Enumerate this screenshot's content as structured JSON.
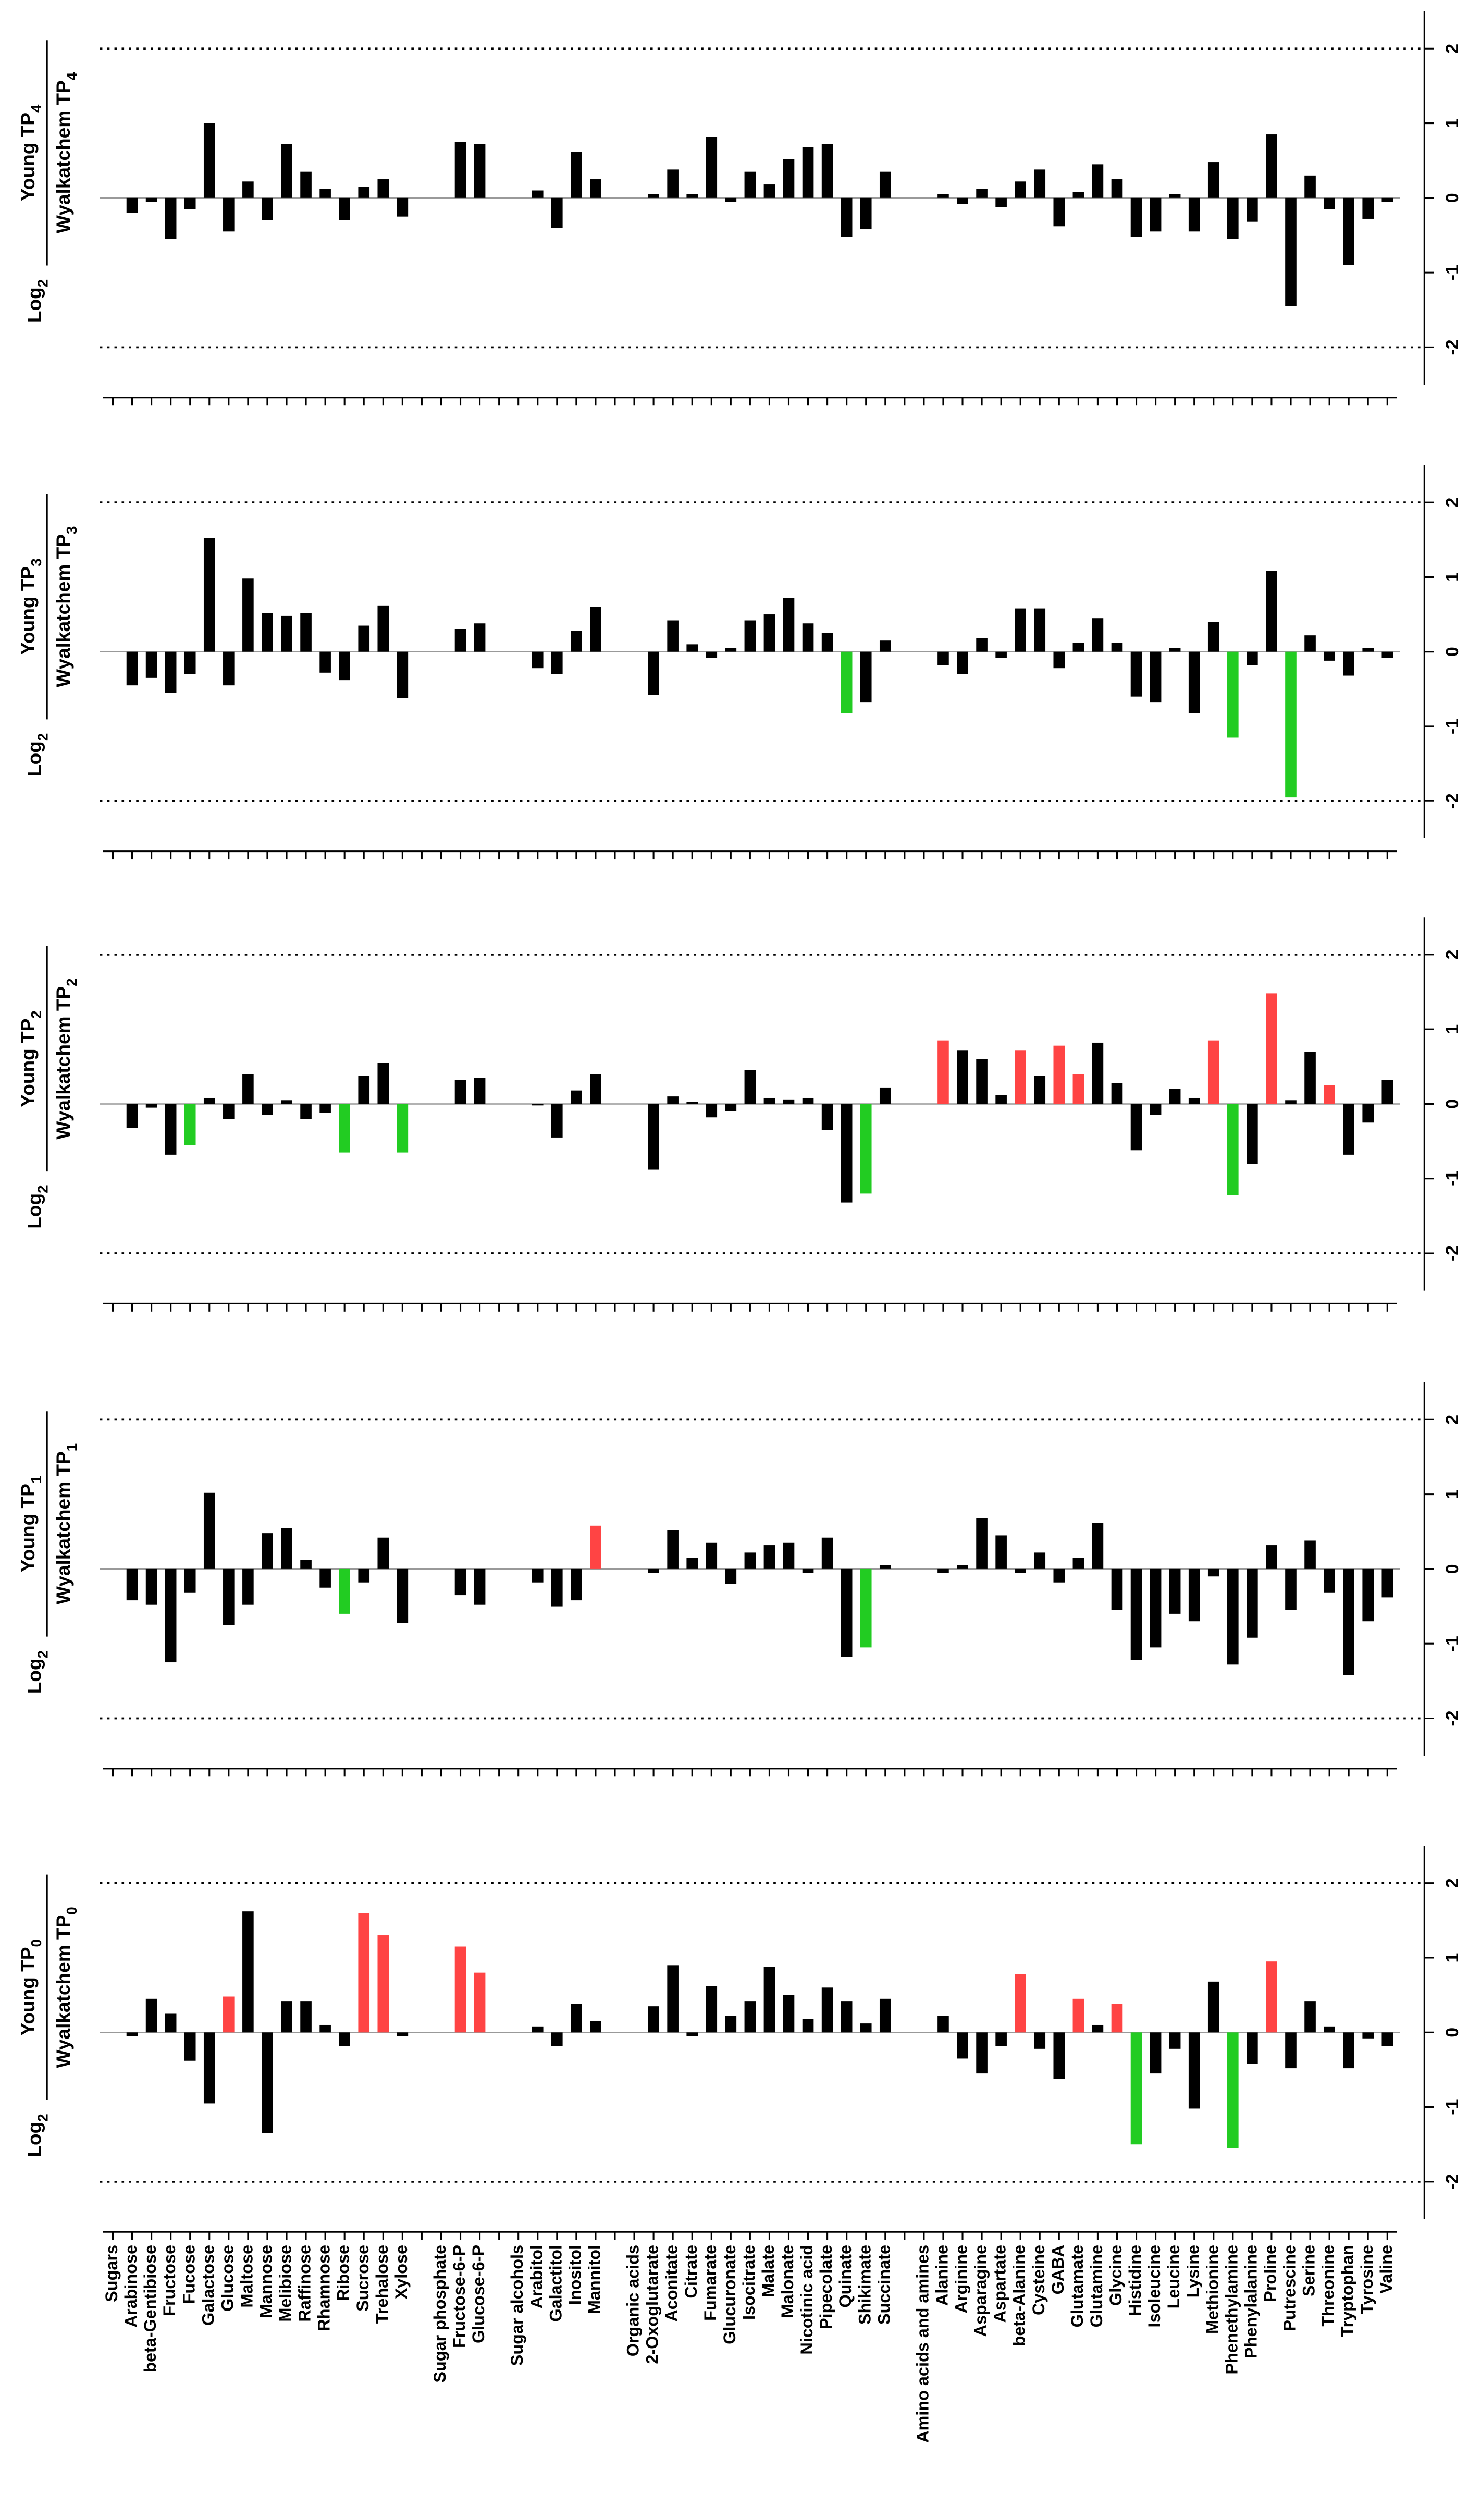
{
  "chart_data": [
    {
      "type": "bar",
      "y_label": {
        "log": "Log",
        "base": "2",
        "numerator": "Young TP",
        "numerator_sub": "4",
        "denominator": "Wyalkatchem TP",
        "denominator_sub": "4"
      },
      "ylim": [
        -2.5,
        2.5
      ],
      "yticks": [
        -2,
        -1,
        0,
        1,
        2
      ],
      "values": [
        null,
        -0.2,
        -0.05,
        -0.55,
        -0.15,
        1.0,
        -0.45,
        0.22,
        -0.3,
        0.72,
        0.35,
        0.12,
        -0.3,
        0.15,
        0.25,
        -0.25,
        null,
        null,
        0.75,
        0.72,
        null,
        null,
        0.1,
        -0.4,
        0.62,
        0.25,
        null,
        null,
        0.05,
        0.38,
        0.05,
        0.82,
        -0.05,
        0.35,
        0.18,
        0.52,
        0.68,
        0.72,
        -0.52,
        -0.42,
        0.35,
        null,
        null,
        0.05,
        -0.08,
        0.12,
        -0.12,
        0.22,
        0.38,
        -0.38,
        0.08,
        0.45,
        0.25,
        -0.52,
        -0.45,
        0.05,
        -0.45,
        0.48,
        -0.55,
        -0.32,
        0.85,
        -1.45,
        0.3,
        -0.15,
        -0.9,
        -0.28,
        -0.05
      ],
      "colors": [
        null,
        "#000",
        "#000",
        "#000",
        "#000",
        "#000",
        "#000",
        "#000",
        "#000",
        "#000",
        "#000",
        "#000",
        "#000",
        "#000",
        "#000",
        "#000",
        null,
        null,
        "#000",
        "#000",
        null,
        null,
        "#000",
        "#000",
        "#000",
        "#000",
        null,
        null,
        "#000",
        "#000",
        "#000",
        "#000",
        "#000",
        "#000",
        "#000",
        "#000",
        "#000",
        "#000",
        "#000",
        "#000",
        "#000",
        null,
        null,
        "#000",
        "#000",
        "#000",
        "#000",
        "#000",
        "#000",
        "#000",
        "#000",
        "#000",
        "#000",
        "#000",
        "#000",
        "#000",
        "#000",
        "#000",
        "#000",
        "#000",
        "#000",
        "#000",
        "#000",
        "#000",
        "#000",
        "#000",
        "#000",
        "#000",
        "#000"
      ]
    },
    {
      "type": "bar",
      "y_label": {
        "log": "Log",
        "base": "2",
        "numerator": "Young TP",
        "numerator_sub": "3",
        "denominator": "Wyalkatchem TP",
        "denominator_sub": "3"
      },
      "ylim": [
        -2.5,
        2.5
      ],
      "yticks": [
        -2,
        -1,
        0,
        1,
        2
      ],
      "values": [
        null,
        -0.45,
        -0.35,
        -0.55,
        -0.3,
        1.52,
        -0.45,
        0.98,
        0.52,
        0.48,
        0.52,
        -0.28,
        -0.38,
        0.35,
        0.62,
        -0.62,
        null,
        null,
        0.3,
        0.38,
        null,
        null,
        -0.22,
        -0.3,
        0.28,
        0.6,
        null,
        null,
        -0.58,
        0.42,
        0.1,
        -0.08,
        0.05,
        0.42,
        0.5,
        0.72,
        0.38,
        0.25,
        -0.82,
        -0.68,
        0.15,
        null,
        null,
        -0.18,
        -0.3,
        0.18,
        -0.08,
        0.58,
        0.58,
        -0.22,
        0.12,
        0.45,
        0.12,
        -0.6,
        -0.68,
        0.05,
        -0.82,
        0.4,
        -1.15,
        -0.18,
        1.08,
        -1.95,
        0.22,
        -0.12,
        -0.32,
        0.05,
        -0.08
      ],
      "colors": [
        null,
        "#000",
        "#000",
        "#000",
        "#000",
        "#000",
        "#000",
        "#000",
        "#000",
        "#000",
        "#000",
        "#000",
        "#000",
        "#000",
        "#000",
        "#000",
        null,
        null,
        "#000",
        "#000",
        null,
        null,
        "#000",
        "#000",
        "#000",
        "#000",
        null,
        null,
        "#000",
        "#000",
        "#000",
        "#000",
        "#000",
        "#000",
        "#000",
        "#000",
        "#000",
        "#000",
        "#2c2",
        "#000",
        "#000",
        null,
        null,
        "#000",
        "#000",
        "#000",
        "#000",
        "#000",
        "#000",
        "#000",
        "#000",
        "#000",
        "#000",
        "#000",
        "#000",
        "#000",
        "#000",
        "#000",
        "#2c2",
        "#000",
        "#000",
        "#2c2",
        "#000",
        "#000",
        "#000",
        "#000",
        "#000"
      ]
    },
    {
      "type": "bar",
      "y_label": {
        "log": "Log",
        "base": "2",
        "numerator": "Young TP",
        "numerator_sub": "2",
        "denominator": "Wyalkatchem TP",
        "denominator_sub": "2"
      },
      "ylim": [
        -2.5,
        2.5
      ],
      "yticks": [
        -2,
        -1,
        0,
        1,
        2
      ],
      "values": [
        null,
        -0.32,
        -0.05,
        -0.68,
        -0.55,
        0.08,
        -0.2,
        0.4,
        -0.15,
        0.05,
        -0.2,
        -0.12,
        -0.65,
        0.38,
        0.55,
        -0.65,
        null,
        null,
        0.32,
        0.35,
        null,
        null,
        -0.02,
        -0.45,
        0.18,
        0.4,
        null,
        null,
        -0.88,
        0.1,
        0.03,
        -0.18,
        -0.1,
        0.45,
        0.08,
        0.06,
        0.08,
        -0.35,
        -1.32,
        -1.2,
        0.22,
        null,
        null,
        0.85,
        0.72,
        0.6,
        0.12,
        0.72,
        0.38,
        0.78,
        0.4,
        0.82,
        0.28,
        -0.62,
        -0.15,
        0.2,
        0.08,
        0.85,
        -1.22,
        -0.8,
        1.48,
        0.05,
        0.7,
        0.25,
        -0.68,
        -0.25,
        0.32
      ],
      "colors": [
        null,
        "#000",
        "#000",
        "#000",
        "#2c2",
        "#000",
        "#000",
        "#000",
        "#000",
        "#000",
        "#000",
        "#000",
        "#2c2",
        "#000",
        "#000",
        "#2c2",
        null,
        null,
        "#000",
        "#000",
        null,
        null,
        "#000",
        "#000",
        "#000",
        "#000",
        null,
        null,
        "#000",
        "#000",
        "#000",
        "#000",
        "#000",
        "#000",
        "#000",
        "#000",
        "#000",
        "#000",
        "#000",
        "#2c2",
        "#000",
        null,
        null,
        "#f44",
        "#000",
        "#000",
        "#000",
        "#f44",
        "#000",
        "#f44",
        "#f44",
        "#000",
        "#000",
        "#000",
        "#000",
        "#000",
        "#000",
        "#f44",
        "#2c2",
        "#000",
        "#f44",
        "#000",
        "#000",
        "#f44",
        "#000",
        "#000",
        "#000"
      ]
    },
    {
      "type": "bar",
      "y_label": {
        "log": "Log",
        "base": "2",
        "numerator": "Young TP",
        "numerator_sub": "1",
        "denominator": "Wyalkatchem TP",
        "denominator_sub": "1"
      },
      "ylim": [
        -2.5,
        2.5
      ],
      "yticks": [
        -2,
        -1,
        0,
        1,
        2
      ],
      "values": [
        null,
        -0.42,
        -0.48,
        -1.25,
        -0.32,
        1.02,
        -0.75,
        -0.48,
        0.48,
        0.55,
        0.12,
        -0.25,
        -0.6,
        -0.18,
        0.42,
        -0.72,
        null,
        null,
        -0.35,
        -0.48,
        null,
        null,
        -0.18,
        -0.5,
        -0.42,
        0.58,
        null,
        null,
        -0.05,
        0.52,
        0.15,
        0.35,
        -0.2,
        0.22,
        0.32,
        0.35,
        -0.05,
        0.42,
        -1.18,
        -1.05,
        0.05,
        null,
        null,
        -0.05,
        0.05,
        0.68,
        0.45,
        -0.05,
        0.22,
        -0.18,
        0.15,
        0.62,
        -0.55,
        -1.22,
        -1.05,
        -0.6,
        -0.7,
        -0.1,
        -1.28,
        -0.92,
        0.32,
        -0.55,
        0.38,
        -0.32,
        -1.42,
        -0.7,
        -0.38
      ],
      "colors": [
        null,
        "#000",
        "#000",
        "#000",
        "#000",
        "#000",
        "#000",
        "#000",
        "#000",
        "#000",
        "#000",
        "#000",
        "#2c2",
        "#000",
        "#000",
        "#000",
        null,
        null,
        "#000",
        "#000",
        null,
        null,
        "#000",
        "#000",
        "#000",
        "#f44",
        null,
        null,
        "#000",
        "#000",
        "#000",
        "#000",
        "#000",
        "#000",
        "#000",
        "#000",
        "#000",
        "#000",
        "#000",
        "#2c2",
        "#000",
        null,
        null,
        "#000",
        "#000",
        "#000",
        "#000",
        "#000",
        "#000",
        "#000",
        "#000",
        "#000",
        "#000",
        "#000",
        "#000",
        "#000",
        "#000",
        "#000",
        "#000",
        "#000",
        "#000",
        "#000",
        "#000",
        "#000",
        "#000",
        "#000",
        "#000",
        "#000"
      ]
    },
    {
      "type": "bar",
      "y_label": {
        "log": "Log",
        "base": "2",
        "numerator": "Young TP",
        "numerator_sub": "0",
        "denominator": "Wyalkatchem TP",
        "denominator_sub": "0"
      },
      "ylim": [
        -2.5,
        2.5
      ],
      "yticks": [
        -2,
        -1,
        0,
        1,
        2
      ],
      "categories": [
        "Sugars",
        "Arabinose",
        "beta-Gentibiose",
        "Fructose",
        "Fucose",
        "Galactose",
        "Glucose",
        "Maltose",
        "Mannose",
        "Melibiose",
        "Raffinose",
        "Rhamnose",
        "Ribose",
        "Sucrose",
        "Trehalose",
        "Xylose",
        null,
        "Sugar phosphate",
        "Fructose-6-P",
        "Glucose-6-P",
        null,
        "Sugar alcohols",
        "Arabitol",
        "Galactitol",
        "Inositol",
        "Mannitol",
        null,
        "Organic acids",
        "2-Oxoglutarate",
        "Aconitate",
        "Citrate",
        "Fumarate",
        "Glucuronate",
        "Isocitrate",
        "Malate",
        "Malonate",
        "Nicotinic acid",
        "Pipecolate",
        "Quinate",
        "Shikimate",
        "Succinate",
        null,
        "Amino acids and amines",
        "Alanine",
        "Arginine",
        "Asparagine",
        "Aspartate",
        "beta-Alanine",
        "Cysteine",
        "GABA",
        "Glutamate",
        "Glutamine",
        "Glycine",
        "Histidine",
        "Isoleucine",
        "Leucine",
        "Lysine",
        "Methionine",
        "Phenethylamine",
        "Phenylalanine",
        "Proline",
        "Putrescine",
        "Serine",
        "Threonine",
        "Tryptophan",
        "Tyrosine",
        "Valine"
      ],
      "values": [
        null,
        -0.05,
        0.45,
        0.25,
        -0.38,
        -0.95,
        0.48,
        1.62,
        -1.35,
        0.42,
        0.42,
        0.1,
        -0.18,
        1.6,
        1.3,
        -0.05,
        null,
        null,
        1.15,
        0.8,
        null,
        null,
        0.08,
        -0.18,
        0.38,
        0.15,
        null,
        null,
        0.35,
        0.9,
        -0.05,
        0.62,
        0.22,
        0.42,
        0.88,
        0.5,
        0.18,
        0.6,
        0.42,
        0.12,
        0.45,
        null,
        null,
        0.22,
        -0.35,
        -0.55,
        -0.18,
        0.78,
        -0.22,
        -0.62,
        0.45,
        0.1,
        0.38,
        -1.5,
        -0.55,
        -0.22,
        -1.02,
        0.68,
        -1.55,
        -0.42,
        0.95,
        -0.48,
        0.42,
        0.08,
        -0.48,
        -0.08,
        -0.18
      ],
      "colors": [
        null,
        "#000",
        "#000",
        "#000",
        "#000",
        "#000",
        "#f44",
        "#000",
        "#000",
        "#000",
        "#000",
        "#000",
        "#000",
        "#f44",
        "#f44",
        "#000",
        null,
        null,
        "#f44",
        "#f44",
        null,
        null,
        "#000",
        "#000",
        "#000",
        "#000",
        null,
        null,
        "#000",
        "#000",
        "#000",
        "#000",
        "#000",
        "#000",
        "#000",
        "#000",
        "#000",
        "#000",
        "#000",
        "#000",
        "#000",
        null,
        null,
        "#000",
        "#000",
        "#000",
        "#000",
        "#f44",
        "#000",
        "#000",
        "#f44",
        "#000",
        "#f44",
        "#2c2",
        "#000",
        "#000",
        "#000",
        "#000",
        "#2c2",
        "#000",
        "#f44",
        "#000",
        "#000",
        "#000",
        "#000",
        "#000",
        "#000"
      ]
    }
  ]
}
